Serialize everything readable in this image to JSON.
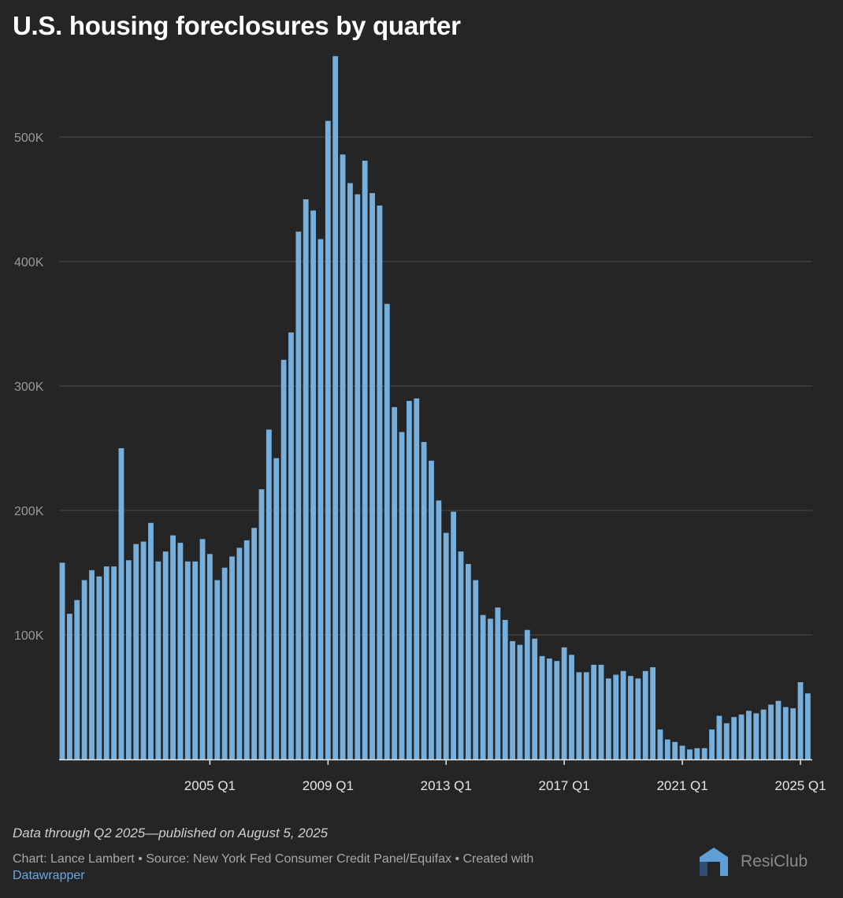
{
  "chart_data": {
    "type": "bar",
    "title": "U.S. housing foreclosures by quarter",
    "xlabel": "",
    "ylabel": "",
    "ylim": [
      0,
      570000
    ],
    "grid": true,
    "y_ticks": [
      {
        "value": 100000,
        "label": "100K"
      },
      {
        "value": 200000,
        "label": "200K"
      },
      {
        "value": 300000,
        "label": "300K"
      },
      {
        "value": 400000,
        "label": "400K"
      },
      {
        "value": 500000,
        "label": "500K"
      }
    ],
    "x_ticks": [
      "2005 Q1",
      "2009 Q1",
      "2013 Q1",
      "2017 Q1",
      "2021 Q1",
      "2025 Q1"
    ],
    "start": "2000 Q1",
    "end": "2025 Q2",
    "bar_color": "#76aedc",
    "values": [
      158000,
      117000,
      128000,
      144000,
      152000,
      147000,
      155000,
      155000,
      250000,
      160000,
      173000,
      175000,
      190000,
      159000,
      167000,
      180000,
      174000,
      159000,
      159000,
      177000,
      165000,
      144000,
      154000,
      163000,
      170000,
      176000,
      186000,
      217000,
      265000,
      242000,
      321000,
      343000,
      424000,
      450000,
      441000,
      418000,
      513000,
      565000,
      486000,
      463000,
      454000,
      481000,
      455000,
      445000,
      366000,
      283000,
      263000,
      288000,
      290000,
      255000,
      240000,
      208000,
      182000,
      199000,
      167000,
      157000,
      144000,
      116000,
      113000,
      122000,
      112000,
      95000,
      92000,
      104000,
      97000,
      83000,
      81000,
      79000,
      90000,
      84000,
      70000,
      70000,
      76000,
      76000,
      65000,
      68000,
      71000,
      67000,
      65000,
      71000,
      74000,
      24000,
      16000,
      14000,
      11000,
      8000,
      9000,
      9000,
      24000,
      35000,
      29000,
      34000,
      36000,
      39000,
      37000,
      40000,
      44000,
      47000,
      42000,
      41000,
      62000,
      53000
    ]
  },
  "footer": {
    "note": "Data through Q2 2025—published on August 5, 2025",
    "credit": "Chart: Lance Lambert • Source: New York Fed Consumer Credit Panel/Equifax • Created with",
    "link": "Datawrapper",
    "logo": "ResiClub",
    "logo_mark": "RC"
  }
}
